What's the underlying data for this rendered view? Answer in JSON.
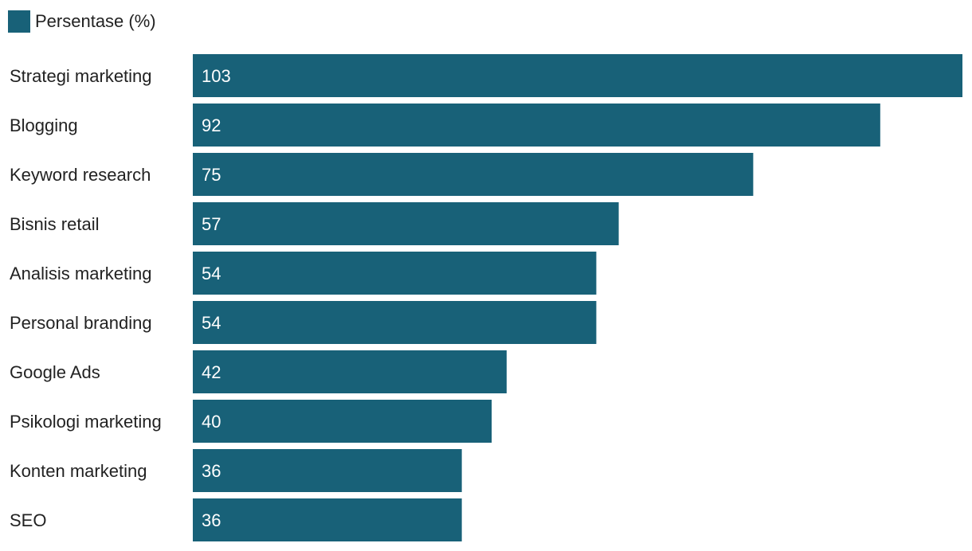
{
  "chart_data": {
    "type": "bar",
    "orientation": "horizontal",
    "categories": [
      "Strategi marketing",
      "Blogging",
      "Keyword research",
      "Bisnis retail",
      "Analisis marketing",
      "Personal branding",
      "Google Ads",
      "Psikologi marketing",
      "Konten marketing",
      "SEO"
    ],
    "series": [
      {
        "name": "Persentase (%)",
        "values": [
          103,
          92,
          75,
          57,
          54,
          54,
          42,
          40,
          36,
          36
        ],
        "color": "#186178"
      }
    ],
    "xlim": [
      0,
      103
    ],
    "grid": false,
    "legend_position": "top-left",
    "data_labels": true,
    "colors": {
      "bar": "#186178",
      "data_label": "#ffffff",
      "category_label": "#222222"
    }
  }
}
